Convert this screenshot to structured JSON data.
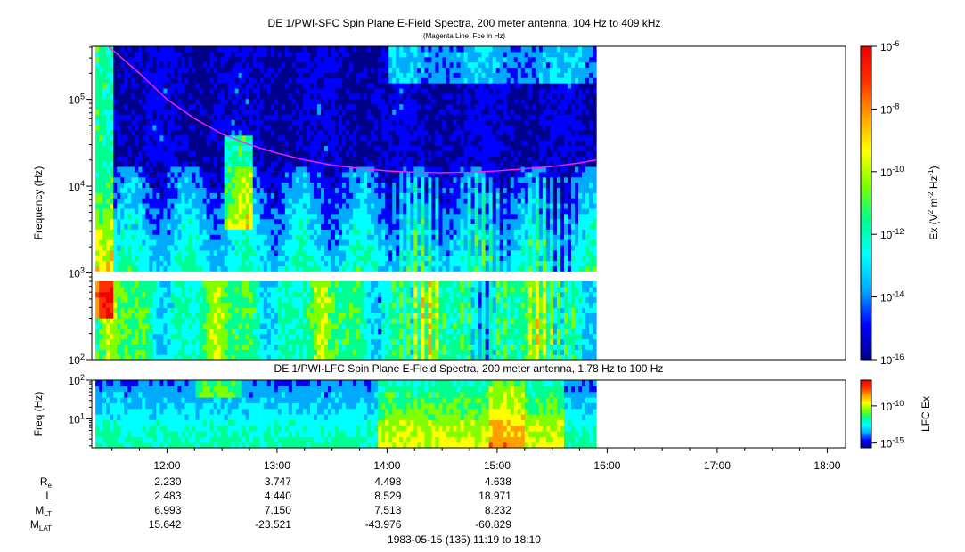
{
  "header": {
    "title": "DE 1/PWI-SFC  Spin Plane E-Field Spectra, 200 meter antenna, 104 Hz to 409 kHz",
    "subtitle": "(Magenta Line: Fce in Hz)"
  },
  "footer": {
    "date_range": "1983-05-15 (135) 11:19 to 18:10"
  },
  "colors": {
    "background": "#ffffff",
    "fce_line": "#ff20ff",
    "colormap": [
      "#00008b",
      "#0000ff",
      "#00aaff",
      "#00ffff",
      "#00ff90",
      "#80ff00",
      "#ffff00",
      "#ffa000",
      "#ff3000",
      "#ee0000"
    ]
  },
  "chart_data": [
    {
      "type": "heatmap",
      "title": "DE 1/PWI-SFC  Spin Plane E-Field Spectra, 200 meter antenna, 104 Hz to 409 kHz",
      "subtitle": "(Magenta Line: Fce in Hz)",
      "ylabel": "Frequency (Hz)",
      "y_scale": "log",
      "ylim": [
        100,
        409000
      ],
      "y_ticks": [
        {
          "value": 100,
          "base": "10",
          "exp": "2"
        },
        {
          "value": 1000,
          "base": "10",
          "exp": "3"
        },
        {
          "value": 10000,
          "base": "10",
          "exp": "4"
        },
        {
          "value": 100000,
          "base": "10",
          "exp": "5"
        }
      ],
      "x_time_range": [
        "11:19",
        "18:10"
      ],
      "data_end_time": "15:54",
      "colorbar": {
        "label": "Ex (V2 m-2 Hz-1)",
        "label_parts": {
          "prefix": "Ex (V",
          "sup1": "2",
          "mid": " m",
          "sup2": "-2",
          "mid2": " Hz",
          "sup3": "-1",
          "suffix": ")"
        },
        "scale": "log",
        "range": [
          1e-16,
          1e-06
        ],
        "ticks": [
          {
            "value": 1e-06,
            "base": "10",
            "exp": "-6"
          },
          {
            "value": 1e-08,
            "base": "10",
            "exp": "-8"
          },
          {
            "value": 1e-10,
            "base": "10",
            "exp": "-10"
          },
          {
            "value": 1e-12,
            "base": "10",
            "exp": "-12"
          },
          {
            "value": 1e-14,
            "base": "10",
            "exp": "-14"
          },
          {
            "value": 1e-16,
            "base": "10",
            "exp": "-16"
          }
        ]
      },
      "series": [
        {
          "name": "Fce",
          "times": [
            "11:28",
            "11:45",
            "12:00",
            "12:15",
            "12:30",
            "12:45",
            "13:00",
            "13:15",
            "13:30",
            "13:45",
            "14:00",
            "14:15",
            "14:30",
            "14:45",
            "15:00",
            "15:15",
            "15:30",
            "15:45",
            "15:54"
          ],
          "values": [
            409000,
            200000,
            100000,
            60000,
            40000,
            30000,
            24000,
            20000,
            17500,
            16000,
            15000,
            14500,
            14300,
            14500,
            15000,
            15800,
            16800,
            18500,
            20000
          ]
        }
      ]
    },
    {
      "type": "heatmap",
      "title": "DE 1/PWI-LFC  Spin Plane E-Field Spectra, 200 meter antenna, 1.78 Hz to 100 Hz",
      "ylabel": "Freq (Hz)",
      "y_scale": "log",
      "ylim": [
        1.78,
        100
      ],
      "y_ticks": [
        {
          "value": 10,
          "base": "10",
          "exp": "1"
        },
        {
          "value": 100,
          "base": "10",
          "exp": "2"
        }
      ],
      "x_time_range": [
        "11:19",
        "18:10"
      ],
      "data_end_time": "15:54",
      "colorbar": {
        "label": "LFC Ex",
        "scale": "log",
        "ticks": [
          {
            "value": 1e-10,
            "base": "10",
            "exp": "-10"
          },
          {
            "value": 1e-15,
            "base": "10",
            "exp": "-15"
          }
        ]
      }
    }
  ],
  "x_axis": {
    "ticks": [
      "12:00",
      "13:00",
      "14:00",
      "15:00",
      "16:00",
      "17:00",
      "18:00"
    ]
  },
  "ephemeris": {
    "rows": [
      {
        "label": "R",
        "sub": "e",
        "values": [
          "2.230",
          "3.747",
          "4.498",
          "4.638"
        ]
      },
      {
        "label": "L",
        "sub": "",
        "values": [
          "2.483",
          "4.440",
          "8.529",
          "18.971"
        ]
      },
      {
        "label": "M",
        "sub": "LT",
        "values": [
          "6.993",
          "7.150",
          "7.513",
          "8.232"
        ]
      },
      {
        "label": "M",
        "sub": "LAT",
        "values": [
          "15.642",
          "-23.521",
          "-43.976",
          "-60.829"
        ]
      }
    ]
  }
}
